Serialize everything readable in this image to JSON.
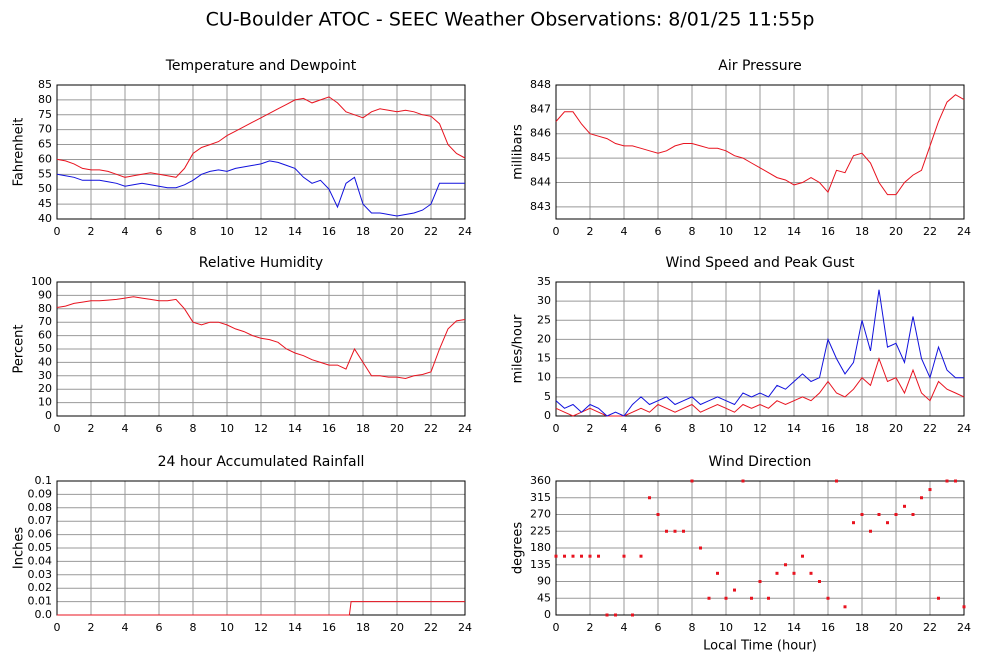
{
  "title": "CU-Boulder ATOC - SEEC Weather Observations: 8/01/25 11:55p",
  "chart_data": [
    {
      "type": "line",
      "title": "Temperature and Dewpoint",
      "ylabel": "Fahrenheit",
      "x": [
        0,
        0.5,
        1,
        1.5,
        2,
        2.5,
        3,
        3.5,
        4,
        4.5,
        5,
        5.5,
        6,
        6.5,
        7,
        7.5,
        8,
        8.5,
        9,
        9.5,
        10,
        10.5,
        11,
        11.5,
        12,
        12.5,
        13,
        13.5,
        14,
        14.5,
        15,
        15.5,
        16,
        16.5,
        17,
        17.5,
        18,
        18.5,
        19,
        19.5,
        20,
        20.5,
        21,
        21.5,
        22,
        22.5,
        23,
        23.5,
        24
      ],
      "series": [
        {
          "color": "#e8131f",
          "values": [
            60,
            59.5,
            58.5,
            57,
            56.5,
            56.5,
            56,
            55,
            54,
            54.5,
            55,
            55.5,
            55,
            54.5,
            54,
            57,
            62,
            64,
            65,
            66,
            68,
            69.5,
            71,
            72.5,
            74,
            75.5,
            77,
            78.5,
            80,
            80.5,
            79,
            80,
            81,
            79,
            76,
            75,
            74,
            76,
            77,
            76.5,
            76,
            76.5,
            76,
            75,
            74.5,
            72,
            65,
            62,
            60.5
          ]
        },
        {
          "color": "#1111dd",
          "values": [
            55,
            54.5,
            54,
            53,
            53,
            53,
            52.5,
            52,
            51,
            51.5,
            52,
            51.5,
            51,
            50.5,
            50.5,
            51.5,
            53,
            55,
            56,
            56.5,
            56,
            57,
            57.5,
            58,
            58.5,
            59.5,
            59,
            58,
            57,
            54,
            52,
            53,
            50,
            44,
            52,
            54,
            45,
            42,
            42,
            41.5,
            41,
            41.5,
            42,
            43,
            45,
            52,
            52,
            52,
            52
          ]
        }
      ],
      "xlim": [
        0,
        24
      ],
      "xticks": [
        0,
        2,
        4,
        6,
        8,
        10,
        12,
        14,
        16,
        18,
        20,
        22,
        24
      ],
      "ylim": [
        40,
        85
      ],
      "yticks": [
        40,
        45,
        50,
        55,
        60,
        65,
        70,
        75,
        80,
        85
      ],
      "grid": true
    },
    {
      "type": "line",
      "title": "Air Pressure",
      "ylabel": "millibars",
      "x": [
        0,
        0.5,
        1,
        1.5,
        2,
        2.5,
        3,
        3.5,
        4,
        4.5,
        5,
        5.5,
        6,
        6.5,
        7,
        7.5,
        8,
        8.5,
        9,
        9.5,
        10,
        10.5,
        11,
        11.5,
        12,
        12.5,
        13,
        13.5,
        14,
        14.5,
        15,
        15.5,
        16,
        16.5,
        17,
        17.5,
        18,
        18.5,
        19,
        19.5,
        20,
        20.5,
        21,
        21.5,
        22,
        22.5,
        23,
        23.5,
        24
      ],
      "series": [
        {
          "color": "#e8131f",
          "values": [
            846.5,
            846.9,
            846.9,
            846.4,
            846.0,
            845.9,
            845.8,
            845.6,
            845.5,
            845.5,
            845.4,
            845.3,
            845.2,
            845.3,
            845.5,
            845.6,
            845.6,
            845.5,
            845.4,
            845.4,
            845.3,
            845.1,
            845.0,
            844.8,
            844.6,
            844.4,
            844.2,
            844.1,
            843.9,
            844.0,
            844.2,
            844.0,
            843.6,
            844.5,
            844.4,
            845.1,
            845.2,
            844.8,
            844.0,
            843.5,
            843.5,
            844.0,
            844.3,
            844.5,
            845.5,
            846.5,
            847.3,
            847.6,
            847.4
          ]
        }
      ],
      "xlim": [
        0,
        24
      ],
      "xticks": [
        0,
        2,
        4,
        6,
        8,
        10,
        12,
        14,
        16,
        18,
        20,
        22,
        24
      ],
      "ylim": [
        842.5,
        848
      ],
      "yticks": [
        843,
        844,
        845,
        846,
        847,
        848
      ],
      "grid": true
    },
    {
      "type": "line",
      "title": "Relative Humidity",
      "ylabel": "Percent",
      "x": [
        0,
        0.5,
        1,
        1.5,
        2,
        2.5,
        3,
        3.5,
        4,
        4.5,
        5,
        5.5,
        6,
        6.5,
        7,
        7.5,
        8,
        8.5,
        9,
        9.5,
        10,
        10.5,
        11,
        11.5,
        12,
        12.5,
        13,
        13.5,
        14,
        14.5,
        15,
        15.5,
        16,
        16.5,
        17,
        17.5,
        18,
        18.5,
        19,
        19.5,
        20,
        20.5,
        21,
        21.5,
        22,
        22.5,
        23,
        23.5,
        24
      ],
      "series": [
        {
          "color": "#e8131f",
          "values": [
            81,
            82,
            84,
            85,
            86,
            86,
            86.5,
            87,
            88,
            89,
            88,
            87,
            86,
            86,
            87,
            80,
            70,
            68,
            70,
            70,
            68,
            65,
            63,
            60,
            58,
            57,
            55,
            50,
            47,
            45,
            42,
            40,
            38,
            38,
            35,
            50,
            40,
            30,
            30,
            29,
            29,
            28,
            30,
            31,
            33,
            50,
            65,
            71,
            72
          ]
        }
      ],
      "xlim": [
        0,
        24
      ],
      "xticks": [
        0,
        2,
        4,
        6,
        8,
        10,
        12,
        14,
        16,
        18,
        20,
        22,
        24
      ],
      "ylim": [
        0,
        100
      ],
      "yticks": [
        0,
        10,
        20,
        30,
        40,
        50,
        60,
        70,
        80,
        90,
        100
      ],
      "grid": true
    },
    {
      "type": "line",
      "title": "Wind Speed and Peak Gust",
      "ylabel": "miles/hour",
      "x": [
        0,
        0.5,
        1,
        1.5,
        2,
        2.5,
        3,
        3.5,
        4,
        4.5,
        5,
        5.5,
        6,
        6.5,
        7,
        7.5,
        8,
        8.5,
        9,
        9.5,
        10,
        10.5,
        11,
        11.5,
        12,
        12.5,
        13,
        13.5,
        14,
        14.5,
        15,
        15.5,
        16,
        16.5,
        17,
        17.5,
        18,
        18.5,
        19,
        19.5,
        20,
        20.5,
        21,
        21.5,
        22,
        22.5,
        23,
        23.5,
        24
      ],
      "series": [
        {
          "color": "#e8131f",
          "values": [
            2,
            1,
            0,
            1,
            2,
            1,
            0,
            0,
            0,
            1,
            2,
            1,
            3,
            2,
            1,
            2,
            3,
            1,
            2,
            3,
            2,
            1,
            3,
            2,
            3,
            2,
            4,
            3,
            4,
            5,
            4,
            6,
            9,
            6,
            5,
            7,
            10,
            8,
            15,
            9,
            10,
            6,
            12,
            6,
            4,
            9,
            7,
            6,
            5
          ]
        },
        {
          "color": "#1111dd",
          "values": [
            4,
            2,
            3,
            1,
            3,
            2,
            0,
            1,
            0,
            3,
            5,
            3,
            4,
            5,
            3,
            4,
            5,
            3,
            4,
            5,
            4,
            3,
            6,
            5,
            6,
            5,
            8,
            7,
            9,
            11,
            9,
            10,
            20,
            15,
            11,
            14,
            25,
            17,
            33,
            18,
            19,
            14,
            26,
            15,
            10,
            18,
            12,
            10,
            10
          ]
        }
      ],
      "xlim": [
        0,
        24
      ],
      "xticks": [
        0,
        2,
        4,
        6,
        8,
        10,
        12,
        14,
        16,
        18,
        20,
        22,
        24
      ],
      "ylim": [
        0,
        35
      ],
      "yticks": [
        0,
        5,
        10,
        15,
        20,
        25,
        30,
        35
      ],
      "grid": true
    },
    {
      "type": "line",
      "title": "24 hour Accumulated Rainfall",
      "ylabel": "Inches",
      "x": [
        0,
        17.2,
        17.3,
        24
      ],
      "series": [
        {
          "color": "#e8131f",
          "values": [
            0,
            0,
            0.01,
            0.01
          ]
        }
      ],
      "xlim": [
        0,
        24
      ],
      "xticks": [
        0,
        2,
        4,
        6,
        8,
        10,
        12,
        14,
        16,
        18,
        20,
        22,
        24
      ],
      "ylim": [
        0,
        0.1
      ],
      "yticks": [
        {
          "value": 0,
          "label": "0.0"
        },
        0.01,
        0.02,
        0.03,
        0.04,
        0.05,
        0.06,
        0.07,
        0.08,
        0.09,
        0.1
      ],
      "grid": true
    },
    {
      "type": "scatter",
      "title": "Wind Direction",
      "ylabel": "degrees",
      "xlabel": "Local Time (hour)",
      "x": [
        0,
        0.5,
        1,
        1.5,
        2,
        2.5,
        3,
        3.5,
        4,
        4.5,
        5,
        5.5,
        6,
        6.5,
        7,
        7.5,
        8,
        8.5,
        9,
        9.5,
        10,
        10.5,
        11,
        11.5,
        12,
        12.5,
        13,
        13.5,
        14,
        14.5,
        15,
        15.5,
        16,
        16.5,
        17,
        17.5,
        18,
        18.5,
        19,
        19.5,
        20,
        20.5,
        21,
        21.5,
        22,
        22.5,
        23,
        23.5,
        24
      ],
      "series": [
        {
          "color": "#e8131f",
          "values": [
            158,
            158,
            158,
            158,
            158,
            158,
            0,
            0,
            158,
            0,
            158,
            315,
            270,
            225,
            225,
            225,
            360,
            180,
            45,
            112,
            45,
            67,
            360,
            45,
            90,
            45,
            112,
            135,
            112,
            158,
            112,
            90,
            45,
            360,
            22,
            248,
            270,
            225,
            270,
            248,
            270,
            292,
            270,
            315,
            337,
            45,
            360,
            360,
            22
          ]
        }
      ],
      "xlim": [
        0,
        24
      ],
      "xticks": [
        0,
        2,
        4,
        6,
        8,
        10,
        12,
        14,
        16,
        18,
        20,
        22,
        24
      ],
      "ylim": [
        0,
        360
      ],
      "yticks": [
        0,
        45,
        90,
        135,
        180,
        225,
        270,
        315,
        360
      ],
      "grid": true
    }
  ]
}
